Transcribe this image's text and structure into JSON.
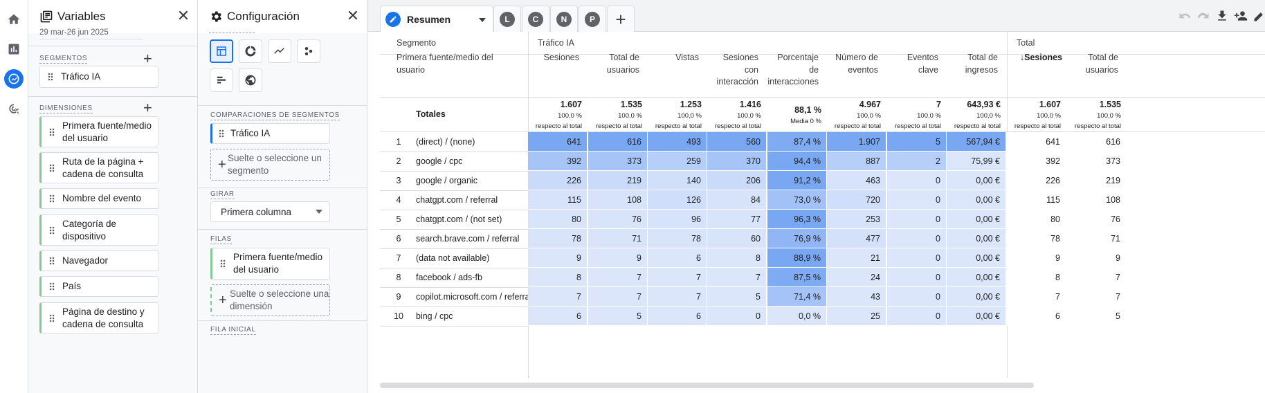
{
  "variables_panel": {
    "title": "Variables",
    "date_range": "29 mar-26 jun 2025",
    "segments_label": "SEGMENTOS",
    "segments": [
      "Tráfico IA"
    ],
    "dimensions_label": "DIMENSIONES",
    "dimensions": [
      "Primera fuente/medio del usuario",
      "Ruta de la página + cadena de consulta",
      "Nombre del evento",
      "Categoría de dispositivo",
      "Navegador",
      "País",
      "Página de destino y cadena de consulta"
    ]
  },
  "config_panel": {
    "title": "Configuración",
    "segment_comparisons_label": "COMPARACIONES DE SEGMENTOS",
    "segment_comparison": "Tráfico IA",
    "drop_segment": "Suelte o seleccione un segmento",
    "pivot_label": "GIRAR",
    "pivot_value": "Primera columna",
    "rows_label": "FILAS",
    "row_dimension": "Primera fuente/medio del usuario",
    "drop_dimension": "Suelte o seleccione una dimensión",
    "start_row_label": "FILA INICIAL"
  },
  "tabs": {
    "active": "Resumen",
    "others": [
      "L",
      "C",
      "N",
      "P"
    ],
    "add": "+"
  },
  "table": {
    "segment_header": "Segmento",
    "segment_name": "Tráfico IA",
    "total_header": "Total",
    "dimension_header": "Primera fuente/medio del usuario",
    "columns": [
      "Sesiones",
      "Total de usuarios",
      "Vistas",
      "Sesiones con interacción",
      "Porcentaje de interacciones",
      "Número de eventos",
      "Eventos clave",
      "Total de ingresos"
    ],
    "total_columns": [
      "Sesiones",
      "Total de usuarios"
    ],
    "sort_arrow": "↓",
    "totals_label": "Totales",
    "totals": [
      {
        "v": "1.607",
        "p": "100,0 %",
        "s": "respecto al total"
      },
      {
        "v": "1.535",
        "p": "100,0 %",
        "s": "respecto al total"
      },
      {
        "v": "1.253",
        "p": "100,0 %",
        "s": "respecto al total"
      },
      {
        "v": "1.416",
        "p": "100,0 %",
        "s": "respecto al total"
      },
      {
        "v": "88,1 %",
        "p": "Media 0 %",
        "s": ""
      },
      {
        "v": "4.967",
        "p": "100,0 %",
        "s": "respecto al total"
      },
      {
        "v": "7",
        "p": "100,0 %",
        "s": "respecto al total"
      },
      {
        "v": "643,93 €",
        "p": "100,0 %",
        "s": "respecto al total"
      },
      {
        "v": "1.607",
        "p": "100,0 %",
        "s": "respecto al total"
      },
      {
        "v": "1.535",
        "p": "100,0 %",
        "s": "respecto al total"
      }
    ],
    "rows": [
      {
        "n": "1",
        "label": "(direct) / (none)",
        "vals": [
          "641",
          "616",
          "493",
          "560",
          "87,4 %",
          "1.907",
          "5",
          "567,94 €",
          "641",
          "616"
        ]
      },
      {
        "n": "2",
        "label": "google / cpc",
        "vals": [
          "392",
          "373",
          "259",
          "370",
          "94,4 %",
          "887",
          "2",
          "75,99 €",
          "392",
          "373"
        ]
      },
      {
        "n": "3",
        "label": "google / organic",
        "vals": [
          "226",
          "219",
          "140",
          "206",
          "91,2 %",
          "463",
          "0",
          "0,00 €",
          "226",
          "219"
        ]
      },
      {
        "n": "4",
        "label": "chatgpt.com / referral",
        "vals": [
          "115",
          "108",
          "126",
          "84",
          "73,0 %",
          "720",
          "0",
          "0,00 €",
          "115",
          "108"
        ]
      },
      {
        "n": "5",
        "label": "chatgpt.com / (not set)",
        "vals": [
          "80",
          "76",
          "96",
          "77",
          "96,3 %",
          "253",
          "0",
          "0,00 €",
          "80",
          "76"
        ]
      },
      {
        "n": "6",
        "label": "search.brave.com / referral",
        "vals": [
          "78",
          "71",
          "78",
          "60",
          "76,9 %",
          "477",
          "0",
          "0,00 €",
          "78",
          "71"
        ]
      },
      {
        "n": "7",
        "label": "(data not available)",
        "vals": [
          "9",
          "9",
          "6",
          "8",
          "88,9 %",
          "21",
          "0",
          "0,00 €",
          "9",
          "9"
        ]
      },
      {
        "n": "8",
        "label": "facebook / ads-fb",
        "vals": [
          "8",
          "7",
          "7",
          "7",
          "87,5 %",
          "24",
          "0",
          "0,00 €",
          "8",
          "7"
        ]
      },
      {
        "n": "9",
        "label": "copilot.microsoft.com / referral",
        "vals": [
          "7",
          "7",
          "7",
          "5",
          "71,4 %",
          "43",
          "0",
          "0,00 €",
          "7",
          "7"
        ]
      },
      {
        "n": "10",
        "label": "bing / cpc",
        "vals": [
          "6",
          "5",
          "6",
          "0",
          "0,0 %",
          "25",
          "0",
          "0,00 €",
          "6",
          "5"
        ]
      }
    ],
    "heat_colors": [
      [
        "#7aa7f2",
        "#7aa7f2",
        "#7aa7f2",
        "#7aa7f2",
        "#7fabf3",
        "#7aa7f2",
        "#7aa7f2",
        "#7aa7f2"
      ],
      [
        "#a6c4f6",
        "#a6c4f6",
        "#b6cff8",
        "#a6c4f6",
        "#7aa7f2",
        "#b6cff8",
        "#b6cff8",
        "#dbe6fb"
      ],
      [
        "#c9dbf9",
        "#c9dbf9",
        "#d0e0fa",
        "#c9dbf9",
        "#7aa7f2",
        "#d6e3fa",
        "#dbe6fb",
        "#dbe6fb"
      ],
      [
        "#d6e3fa",
        "#d6e3fa",
        "#cfdefa",
        "#d6e3fa",
        "#a2c1f6",
        "#cfdefa",
        "#dbe6fb",
        "#dbe6fb"
      ],
      [
        "#d8e4fa",
        "#d8e4fa",
        "#d6e3fa",
        "#d8e4fa",
        "#7aa7f2",
        "#d6e3fa",
        "#dbe6fb",
        "#dbe6fb"
      ],
      [
        "#d8e4fa",
        "#d8e4fa",
        "#d8e4fa",
        "#d8e4fa",
        "#92b6f4",
        "#d3e1fa",
        "#dbe6fb",
        "#dbe6fb"
      ],
      [
        "#dbe6fb",
        "#dbe6fb",
        "#dbe6fb",
        "#dbe6fb",
        "#7aa7f2",
        "#dbe6fb",
        "#dbe6fb",
        "#dbe6fb"
      ],
      [
        "#dbe6fb",
        "#dbe6fb",
        "#dbe6fb",
        "#dbe6fb",
        "#7fabf3",
        "#dbe6fb",
        "#dbe6fb",
        "#dbe6fb"
      ],
      [
        "#dbe6fb",
        "#dbe6fb",
        "#dbe6fb",
        "#dbe6fb",
        "#a5c3f6",
        "#dbe6fb",
        "#dbe6fb",
        "#dbe6fb"
      ],
      [
        "#dbe6fb",
        "#dbe6fb",
        "#dbe6fb",
        "#dbe6fb",
        "#dbe6fb",
        "#dbe6fb",
        "#dbe6fb",
        "#dbe6fb"
      ]
    ]
  },
  "colors": {
    "accent": "#1a73e8",
    "chip_green": "#81c995"
  }
}
